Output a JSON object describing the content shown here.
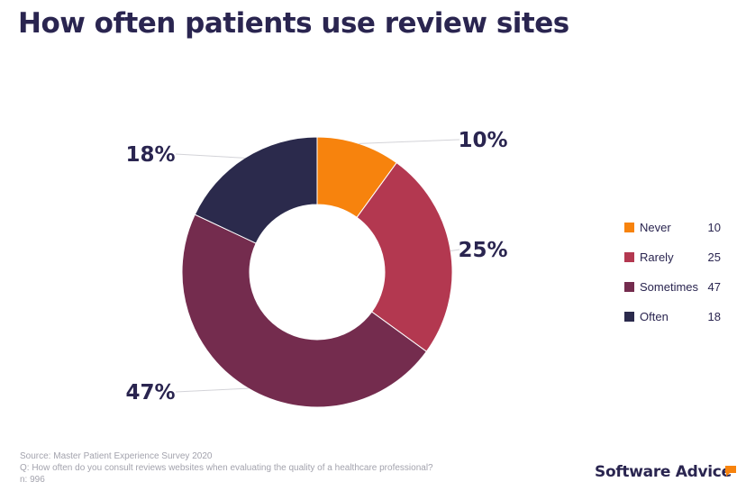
{
  "title": "How often patients use review sites",
  "chart_data": {
    "type": "pie",
    "donut": true,
    "categories": [
      "Never",
      "Rarely",
      "Sometimes",
      "Often"
    ],
    "values": [
      10,
      25,
      47,
      18
    ],
    "data_labels": [
      "10%",
      "25%",
      "47%",
      "18%"
    ],
    "colors": [
      "#f7830d",
      "#b33850",
      "#742c4e",
      "#2b2a4c"
    ],
    "legend_position": "right"
  },
  "footer": {
    "source": "Source: Master Patient Experience Survey 2020",
    "question": "Q: How often do you consult reviews websites when evaluating the quality of a healthcare professional?",
    "n": "n: 996"
  },
  "logo": {
    "text": "Software Advice",
    "accent_color": "#f7830d"
  }
}
